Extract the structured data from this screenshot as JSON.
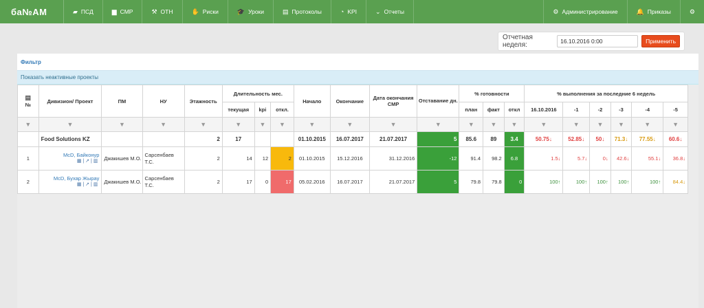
{
  "brand": {
    "logo_text": "ба№АМ"
  },
  "nav": {
    "items": [
      {
        "label": "ПСД",
        "icon": "briefcase-icon",
        "glyph": "▰"
      },
      {
        "label": "СМР",
        "icon": "folder-icon",
        "glyph": "▆"
      },
      {
        "label": "ОТН",
        "icon": "hammer-icon",
        "glyph": "⚒"
      },
      {
        "label": "Риски",
        "icon": "person-icon",
        "glyph": "✋"
      },
      {
        "label": "Уроки",
        "icon": "graduation-cap-icon",
        "glyph": "🎓"
      },
      {
        "label": "Протоколы",
        "icon": "document-icon",
        "glyph": "▤"
      },
      {
        "label": "KPI",
        "icon": "dashboard-icon",
        "glyph": "◔"
      },
      {
        "label": "Отчеты",
        "icon": "chevron-down-icon",
        "glyph": "⌄"
      }
    ],
    "right": [
      {
        "label": "Администрирование",
        "icon": "cogs-icon",
        "glyph": "⚙"
      },
      {
        "label": "Приказы",
        "icon": "bell-icon",
        "glyph": "🔔"
      },
      {
        "label": "",
        "icon": "gear-icon",
        "glyph": "⚙"
      }
    ]
  },
  "week": {
    "label": "Отчетная неделя:",
    "value": "16.10.2016 0:00",
    "apply": "Применить"
  },
  "filter": {
    "title": "Фильтр",
    "show_inactive": "Показать неактивные проекты"
  },
  "table": {
    "headers": {
      "num": "№",
      "division": "Дивизион/ Проект",
      "pm": "ПМ",
      "nu": "НУ",
      "floors": "Этажность",
      "duration": "Длительность мес.",
      "dur_current": "текущая",
      "dur_kpi": "kpi",
      "dur_dev": "откл.",
      "start": "Начало",
      "end": "Окончание",
      "smr_end": "Дата окончания СМР",
      "lag": "Отставание дн.",
      "readiness": "% готовности",
      "ready_plan": "план",
      "ready_fact": "факт",
      "ready_dev": "откл",
      "weeks": "% выполнения за последние 6 недель",
      "week_cols": [
        "16.10.2016",
        "-1",
        "-2",
        "-3",
        "-4",
        "-5"
      ]
    },
    "filter_glyph": "▼",
    "total": {
      "name": "Food Solutions KZ",
      "floors": "2",
      "dur_current": "17",
      "start": "01.10.2015",
      "end": "16.07.2017",
      "smr_end": "21.07.2017",
      "lag": "5",
      "ready_plan": "85.6",
      "ready_fact": "89",
      "ready_dev": "3.4",
      "weeks": [
        {
          "v": "50.75",
          "trend": "down"
        },
        {
          "v": "52.85",
          "trend": "down"
        },
        {
          "v": "50",
          "trend": "down"
        },
        {
          "v": "71.3",
          "trend": "down-orange"
        },
        {
          "v": "77.55",
          "trend": "down-orange"
        },
        {
          "v": "60.6",
          "trend": "down"
        }
      ]
    },
    "rows": [
      {
        "num": "1",
        "name": "McD, Байконур",
        "pm": "Джакишев М.О.",
        "nu": "Сарсенбаев Т.С.",
        "floors": "2",
        "dur_current": "14",
        "dur_kpi": "12",
        "dur_dev": "2",
        "start": "01.10.2015",
        "end": "15.12.2016",
        "smr_end": "31.12.2016",
        "lag": "-12",
        "ready_plan": "91.4",
        "ready_fact": "98.2",
        "ready_dev": "6.8",
        "weeks": [
          {
            "v": "1.5",
            "trend": "down"
          },
          {
            "v": "5.7",
            "trend": "down"
          },
          {
            "v": "0",
            "trend": "down"
          },
          {
            "v": "42.6",
            "trend": "down"
          },
          {
            "v": "55.1",
            "trend": "down"
          },
          {
            "v": "36.8",
            "trend": "down"
          }
        ]
      },
      {
        "num": "2",
        "name": "McD, Бухар Жырау",
        "pm": "Джакишев М.О.",
        "nu": "Сарсенбаев Т.С.",
        "floors": "2",
        "dur_current": "17",
        "dur_kpi": "0",
        "dur_dev": "17",
        "start": "05.02.2016",
        "end": "16.07.2017",
        "smr_end": "21.07.2017",
        "lag": "5",
        "ready_plan": "79.8",
        "ready_fact": "79.8",
        "ready_dev": "0",
        "weeks": [
          {
            "v": "100",
            "trend": "up"
          },
          {
            "v": "100",
            "trend": "up"
          },
          {
            "v": "100",
            "trend": "up"
          },
          {
            "v": "100",
            "trend": "up"
          },
          {
            "v": "100",
            "trend": "up"
          },
          {
            "v": "84.4",
            "trend": "down-orange"
          }
        ]
      }
    ],
    "row_icons": "▦ | ↗ | ▥"
  }
}
